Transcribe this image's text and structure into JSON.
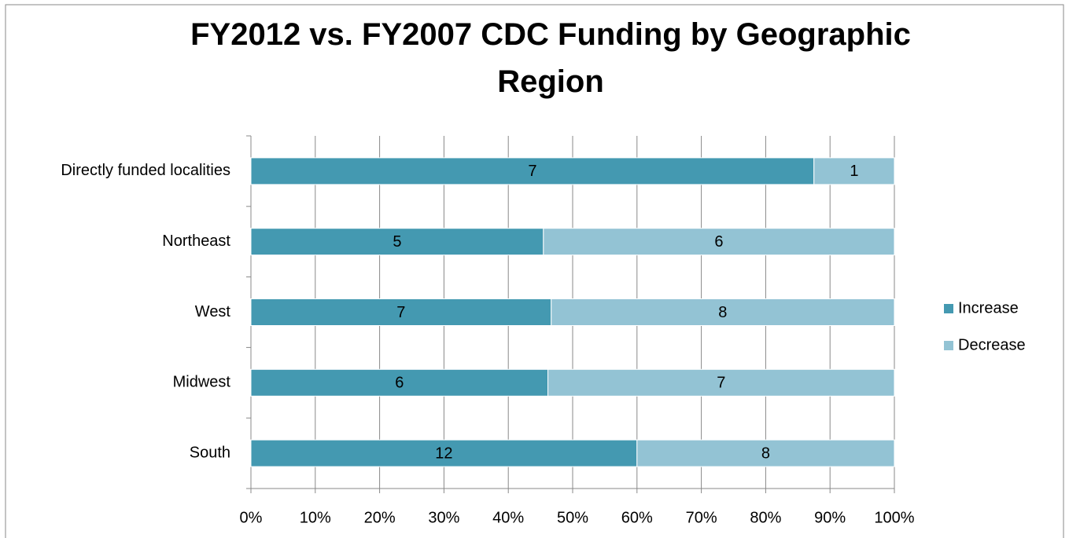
{
  "chart_data": {
    "type": "bar",
    "orientation": "horizontal",
    "stacked_percent": true,
    "title": "FY2012 vs. FY2007 CDC Funding by Geographic Region",
    "categories": [
      "Directly funded localities",
      "Northeast",
      "West",
      "Midwest",
      "South"
    ],
    "series": [
      {
        "name": "Increase",
        "color": "#4499b1",
        "values": [
          7,
          5,
          7,
          6,
          12
        ]
      },
      {
        "name": "Decrease",
        "color": "#93c3d4",
        "values": [
          1,
          6,
          8,
          7,
          8
        ]
      }
    ],
    "xlim": [
      0,
      100
    ],
    "xticks": [
      {
        "value": 0,
        "label": "0%"
      },
      {
        "value": 10,
        "label": "10%"
      },
      {
        "value": 20,
        "label": "20%"
      },
      {
        "value": 30,
        "label": "30%"
      },
      {
        "value": 40,
        "label": "40%"
      },
      {
        "value": 50,
        "label": "50%"
      },
      {
        "value": 60,
        "label": "60%"
      },
      {
        "value": 70,
        "label": "70%"
      },
      {
        "value": 80,
        "label": "80%"
      },
      {
        "value": 90,
        "label": "90%"
      },
      {
        "value": 100,
        "label": "100%"
      }
    ],
    "grid": true,
    "legend": "right"
  }
}
